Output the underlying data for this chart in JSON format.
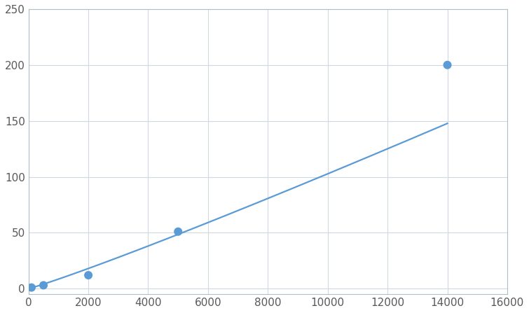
{
  "x": [
    100,
    500,
    2000,
    5000,
    14000
  ],
  "y": [
    1,
    3,
    12,
    51,
    200
  ],
  "line_color": "#5B9BD5",
  "marker_color": "#5B9BD5",
  "marker_size": 5,
  "xlim": [
    0,
    16000
  ],
  "ylim": [
    -5,
    250
  ],
  "xticks": [
    0,
    2000,
    4000,
    6000,
    8000,
    10000,
    12000,
    14000,
    16000
  ],
  "yticks": [
    0,
    50,
    100,
    150,
    200,
    250
  ],
  "grid_color": "#D0D8E0",
  "background_color": "#FFFFFF",
  "tick_label_color": "#595959",
  "tick_label_fontsize": 11
}
